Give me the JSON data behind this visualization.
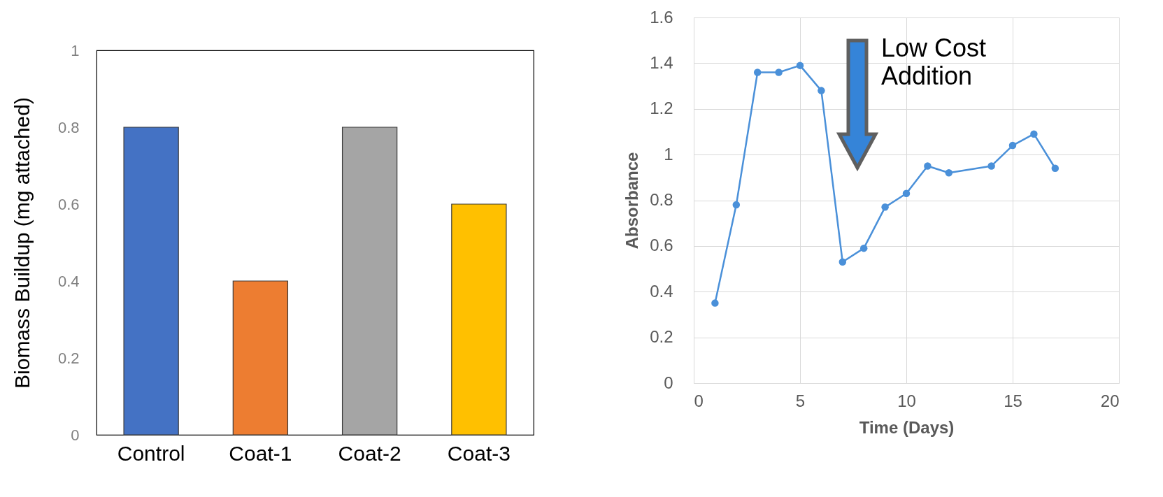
{
  "chart_data": [
    {
      "type": "bar",
      "ylabel": "Biomass Buildup (mg attached)",
      "categories": [
        "Control",
        "Coat-1",
        "Coat-2",
        "Coat-3"
      ],
      "values": [
        0.8,
        0.4,
        0.8,
        0.6
      ],
      "colors": [
        "#4472c4",
        "#ed7d31",
        "#a5a5a5",
        "#ffc000"
      ],
      "ylim": [
        0,
        1
      ],
      "yticks": [
        0,
        0.2,
        0.4,
        0.6,
        0.8,
        1
      ],
      "grid": false,
      "legend": false
    },
    {
      "type": "line",
      "xlabel": "Time (Days)",
      "ylabel": "Absorbance",
      "x": [
        1,
        2,
        3,
        4,
        5,
        6,
        7,
        8,
        9,
        10,
        11,
        12,
        14,
        15,
        16,
        17
      ],
      "series": [
        {
          "color": "#4a90d9",
          "values": [
            0.35,
            0.78,
            1.36,
            1.36,
            1.39,
            1.28,
            0.53,
            0.59,
            0.77,
            0.83,
            0.95,
            0.92,
            0.95,
            1.04,
            1.09,
            0.94
          ]
        }
      ],
      "xlim": [
        0,
        20
      ],
      "xticks": [
        0,
        5,
        10,
        15,
        20
      ],
      "ylim": [
        0,
        1.6
      ],
      "yticks": [
        0,
        0.2,
        0.4,
        0.6,
        0.8,
        1,
        1.2,
        1.4,
        1.6
      ],
      "grid": true,
      "legend": false,
      "marker": "circle",
      "line_style": "solid",
      "annotations": [
        "Low Cost Addition"
      ]
    }
  ]
}
